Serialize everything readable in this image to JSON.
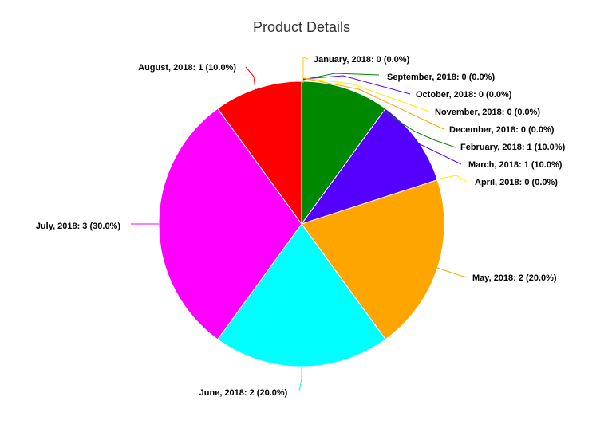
{
  "chart_data": {
    "type": "pie",
    "title": "Product Details",
    "slices": [
      {
        "label": "January, 2018: 0 (0.0%)",
        "name": "January, 2018",
        "value": 0,
        "percent": 0.0,
        "color": "#ffcc00"
      },
      {
        "label": "February, 2018: 1 (10.0%)",
        "name": "February, 2018",
        "value": 1,
        "percent": 10.0,
        "color": "#008800"
      },
      {
        "label": "March, 2018: 1 (10.0%)",
        "name": "March, 2018",
        "value": 1,
        "percent": 10.0,
        "color": "#5500ff"
      },
      {
        "label": "April, 2018: 0 (0.0%)",
        "name": "April, 2018",
        "value": 0,
        "percent": 0.0,
        "color": "#ffee00"
      },
      {
        "label": "May, 2018: 2 (20.0%)",
        "name": "May, 2018",
        "value": 2,
        "percent": 20.0,
        "color": "#ffa500"
      },
      {
        "label": "June, 2018: 2 (20.0%)",
        "name": "June, 2018",
        "value": 2,
        "percent": 20.0,
        "color": "#00ffff"
      },
      {
        "label": "July, 2018: 3 (30.0%)",
        "name": "July, 2018",
        "value": 3,
        "percent": 30.0,
        "color": "#ff00ff"
      },
      {
        "label": "August, 2018: 1 (10.0%)",
        "name": "August, 2018",
        "value": 1,
        "percent": 10.0,
        "color": "#ff0000"
      },
      {
        "label": "September, 2018: 0 (0.0%)",
        "name": "September, 2018",
        "value": 0,
        "percent": 0.0,
        "color": "#008800"
      },
      {
        "label": "October, 2018: 0 (0.0%)",
        "name": "October, 2018",
        "value": 0,
        "percent": 0.0,
        "color": "#5500ff"
      },
      {
        "label": "November, 2018: 0 (0.0%)",
        "name": "November, 2018",
        "value": 0,
        "percent": 0.0,
        "color": "#ffee00"
      },
      {
        "label": "December, 2018: 0 (0.0%)",
        "name": "December, 2018",
        "value": 0,
        "percent": 0.0,
        "color": "#ffa500"
      }
    ]
  }
}
